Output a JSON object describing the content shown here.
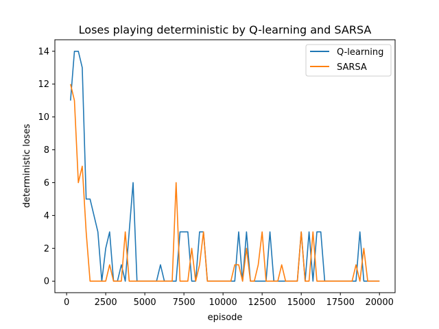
{
  "chart_data": {
    "type": "line",
    "title": "Loses playing deterministic by Q-learning and SARSA",
    "xlabel": "episode",
    "ylabel": "deterministic loses",
    "xlim": [
      -750,
      21000
    ],
    "ylim": [
      -0.7,
      14.7
    ],
    "xticks": [
      0,
      2500,
      5000,
      7500,
      10000,
      12500,
      15000,
      17500,
      20000
    ],
    "yticks": [
      0,
      2,
      4,
      6,
      8,
      10,
      12,
      14
    ],
    "grid": false,
    "legend_position": "top-right",
    "x": [
      250,
      500,
      750,
      1000,
      1250,
      1500,
      1750,
      2000,
      2250,
      2500,
      2750,
      3000,
      3250,
      3500,
      3750,
      4000,
      4250,
      4500,
      4750,
      5000,
      5250,
      5500,
      5750,
      6000,
      6250,
      6500,
      6750,
      7000,
      7250,
      7500,
      7750,
      8000,
      8250,
      8500,
      8750,
      9000,
      9250,
      9500,
      9750,
      10000,
      10250,
      10500,
      10750,
      11000,
      11250,
      11500,
      11750,
      12000,
      12250,
      12500,
      12750,
      13000,
      13250,
      13500,
      13750,
      14000,
      14250,
      14500,
      14750,
      15000,
      15250,
      15500,
      15750,
      16000,
      16250,
      16500,
      16750,
      17000,
      17250,
      17500,
      17750,
      18000,
      18250,
      18500,
      18750,
      19000,
      19250,
      19500,
      19750,
      20000
    ],
    "series": [
      {
        "name": "Q-learning",
        "color": "#1f77b4",
        "values": [
          11,
          14,
          14,
          13,
          5,
          5,
          4,
          3,
          0,
          2,
          3,
          0,
          0,
          1,
          0,
          3,
          6,
          0,
          0,
          0,
          0,
          0,
          0,
          1,
          0,
          0,
          0,
          0,
          3,
          3,
          3,
          0,
          0,
          3,
          3,
          0,
          0,
          0,
          0,
          0,
          0,
          0,
          0,
          3,
          0,
          3,
          0,
          0,
          0,
          0,
          0,
          3,
          0,
          0,
          0,
          0,
          0,
          0,
          0,
          3,
          0,
          3,
          0,
          3,
          3,
          0,
          0,
          0,
          0,
          0,
          0,
          0,
          0,
          0,
          3,
          0,
          0,
          0,
          0,
          0
        ]
      },
      {
        "name": "SARSA",
        "color": "#ff7f0e",
        "values": [
          12,
          11,
          6,
          7,
          3,
          0,
          0,
          0,
          0,
          0,
          1,
          0,
          0,
          0,
          3,
          0,
          0,
          0,
          0,
          0,
          0,
          0,
          0,
          0,
          0,
          0,
          0,
          6,
          0,
          0,
          0,
          2,
          0,
          1,
          3,
          0,
          0,
          0,
          0,
          0,
          0,
          0,
          1,
          1,
          0,
          2,
          0,
          0,
          1,
          3,
          0,
          0,
          0,
          0,
          1,
          0,
          0,
          0,
          0,
          3,
          0,
          0,
          3,
          0,
          0,
          0,
          0,
          0,
          0,
          0,
          0,
          0,
          0,
          1,
          0,
          2,
          0,
          0,
          0,
          0
        ]
      }
    ]
  }
}
